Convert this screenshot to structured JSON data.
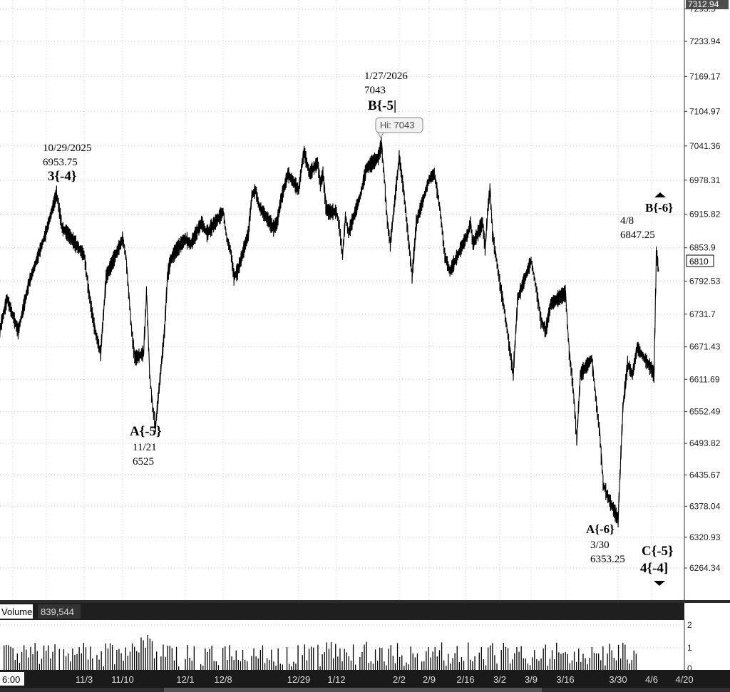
{
  "chart_data": {
    "type": "candlestick",
    "price_axis": {
      "ticks": [
        "7312.94",
        "7293.5",
        "7233.94",
        "7169.17",
        "7104.97",
        "7041.36",
        "6978.31",
        "6915.82",
        "6853.9",
        "6792.53",
        "6731.7",
        "6671.43",
        "6611.69",
        "6552.49",
        "6493.82",
        "6435.67",
        "6378.04",
        "6320.93",
        "6264.34"
      ],
      "max_label": "7312.94",
      "current_label": "6810",
      "range": [
        6210,
        7312
      ]
    },
    "time_axis": {
      "first_label": "6:00",
      "labels": [
        "11/3",
        "11/10",
        "12/1",
        "12/8",
        "12/29",
        "1/12",
        "2/2",
        "2/9",
        "2/16",
        "3/2",
        "3/9",
        "3/16",
        "3/30",
        "4/6",
        "4/20"
      ]
    },
    "price_series": [
      {
        "x": "2025-10-15",
        "y": 6700
      },
      {
        "x": "2025-10-17",
        "y": 6630
      },
      {
        "x": "2025-10-20",
        "y": 6760
      },
      {
        "x": "2025-10-22",
        "y": 6700
      },
      {
        "x": "2025-10-24",
        "y": 6790
      },
      {
        "x": "2025-10-27",
        "y": 6880
      },
      {
        "x": "2025-10-29",
        "y": 6953.75
      },
      {
        "x": "2025-10-30",
        "y": 6890
      },
      {
        "x": "2025-10-31",
        "y": 6880
      },
      {
        "x": "2025-11-03",
        "y": 6840
      },
      {
        "x": "2025-11-04",
        "y": 6760
      },
      {
        "x": "2025-11-05",
        "y": 6700
      },
      {
        "x": "2025-11-06",
        "y": 6660
      },
      {
        "x": "2025-11-07",
        "y": 6800
      },
      {
        "x": "2025-11-10",
        "y": 6870
      },
      {
        "x": "2025-11-11",
        "y": 6840
      },
      {
        "x": "2025-11-12",
        "y": 6770
      },
      {
        "x": "2025-11-13",
        "y": 6700
      },
      {
        "x": "2025-11-14",
        "y": 6650
      },
      {
        "x": "2025-11-17",
        "y": 6660
      },
      {
        "x": "2025-11-18",
        "y": 6770
      },
      {
        "x": "2025-11-19",
        "y": 6620
      },
      {
        "x": "2025-11-20",
        "y": 6560
      },
      {
        "x": "2025-11-21",
        "y": 6525
      },
      {
        "x": "2025-11-24",
        "y": 6700
      },
      {
        "x": "2025-11-25",
        "y": 6800
      },
      {
        "x": "2025-11-26",
        "y": 6830
      },
      {
        "x": "2025-11-28",
        "y": 6850
      },
      {
        "x": "2025-12-01",
        "y": 6870
      },
      {
        "x": "2025-12-02",
        "y": 6860
      },
      {
        "x": "2025-12-03",
        "y": 6880
      },
      {
        "x": "2025-12-04",
        "y": 6900
      },
      {
        "x": "2025-12-05",
        "y": 6880
      },
      {
        "x": "2025-12-08",
        "y": 6920
      },
      {
        "x": "2025-12-09",
        "y": 6870
      },
      {
        "x": "2025-12-10",
        "y": 6850
      },
      {
        "x": "2025-12-11",
        "y": 6800
      },
      {
        "x": "2025-12-12",
        "y": 6810
      },
      {
        "x": "2025-12-15",
        "y": 6880
      },
      {
        "x": "2025-12-16",
        "y": 6950
      },
      {
        "x": "2025-12-17",
        "y": 6960
      },
      {
        "x": "2025-12-18",
        "y": 6930
      },
      {
        "x": "2025-12-19",
        "y": 6920
      },
      {
        "x": "2025-12-22",
        "y": 6890
      },
      {
        "x": "2025-12-23",
        "y": 6900
      },
      {
        "x": "2025-12-24",
        "y": 6940
      },
      {
        "x": "2025-12-26",
        "y": 6990
      },
      {
        "x": "2025-12-29",
        "y": 6960
      },
      {
        "x": "2025-12-30",
        "y": 7000
      },
      {
        "x": "2025-12-31",
        "y": 7030
      },
      {
        "x": "2026-01-02",
        "y": 6990
      },
      {
        "x": "2026-01-05",
        "y": 7010
      },
      {
        "x": "2026-01-06",
        "y": 6970
      },
      {
        "x": "2026-01-07",
        "y": 6990
      },
      {
        "x": "2026-01-08",
        "y": 6930
      },
      {
        "x": "2026-01-09",
        "y": 6920
      },
      {
        "x": "2026-01-12",
        "y": 6920
      },
      {
        "x": "2026-01-13",
        "y": 6890
      },
      {
        "x": "2026-01-14",
        "y": 6840
      },
      {
        "x": "2026-01-15",
        "y": 6910
      },
      {
        "x": "2026-01-16",
        "y": 6880
      },
      {
        "x": "2026-01-20",
        "y": 6950
      },
      {
        "x": "2026-01-22",
        "y": 7000
      },
      {
        "x": "2026-01-26",
        "y": 7020
      },
      {
        "x": "2026-01-27",
        "y": 7043
      },
      {
        "x": "2026-01-28",
        "y": 6980
      },
      {
        "x": "2026-01-29",
        "y": 6900
      },
      {
        "x": "2026-01-30",
        "y": 6860
      },
      {
        "x": "2026-02-02",
        "y": 7020
      },
      {
        "x": "2026-02-03",
        "y": 6960
      },
      {
        "x": "2026-02-04",
        "y": 6880
      },
      {
        "x": "2026-02-05",
        "y": 6800
      },
      {
        "x": "2026-02-06",
        "y": 6900
      },
      {
        "x": "2026-02-09",
        "y": 6980
      },
      {
        "x": "2026-02-10",
        "y": 6990
      },
      {
        "x": "2026-02-11",
        "y": 6930
      },
      {
        "x": "2026-02-12",
        "y": 6840
      },
      {
        "x": "2026-02-13",
        "y": 6810
      },
      {
        "x": "2026-02-17",
        "y": 6880
      },
      {
        "x": "2026-02-18",
        "y": 6900
      },
      {
        "x": "2026-02-19",
        "y": 6860
      },
      {
        "x": "2026-02-20",
        "y": 6870
      },
      {
        "x": "2026-02-23",
        "y": 6900
      },
      {
        "x": "2026-02-24",
        "y": 6850
      },
      {
        "x": "2026-02-25",
        "y": 6920
      },
      {
        "x": "2026-02-26",
        "y": 6960
      },
      {
        "x": "2026-02-27",
        "y": 6880
      },
      {
        "x": "2026-03-02",
        "y": 6790
      },
      {
        "x": "2026-03-03",
        "y": 6740
      },
      {
        "x": "2026-03-04",
        "y": 6680
      },
      {
        "x": "2026-03-05",
        "y": 6620
      },
      {
        "x": "2026-03-06",
        "y": 6760
      },
      {
        "x": "2026-03-09",
        "y": 6830
      },
      {
        "x": "2026-03-10",
        "y": 6780
      },
      {
        "x": "2026-03-11",
        "y": 6720
      },
      {
        "x": "2026-03-12",
        "y": 6700
      },
      {
        "x": "2026-03-13",
        "y": 6750
      },
      {
        "x": "2026-03-16",
        "y": 6770
      },
      {
        "x": "2026-03-17",
        "y": 6660
      },
      {
        "x": "2026-03-18",
        "y": 6600
      },
      {
        "x": "2026-03-19",
        "y": 6500
      },
      {
        "x": "2026-03-20",
        "y": 6620
      },
      {
        "x": "2026-03-23",
        "y": 6650
      },
      {
        "x": "2026-03-24",
        "y": 6580
      },
      {
        "x": "2026-03-25",
        "y": 6520
      },
      {
        "x": "2026-03-26",
        "y": 6420
      },
      {
        "x": "2026-03-27",
        "y": 6400
      },
      {
        "x": "2026-03-30",
        "y": 6353.25
      },
      {
        "x": "2026-03-31",
        "y": 6560
      },
      {
        "x": "2026-04-01",
        "y": 6640
      },
      {
        "x": "2026-04-02",
        "y": 6620
      },
      {
        "x": "2026-04-03",
        "y": 6670
      },
      {
        "x": "2026-04-06",
        "y": 6630
      },
      {
        "x": "2026-04-07",
        "y": 6620
      },
      {
        "x": "2026-04-08",
        "y": 6847.25
      },
      {
        "x": "2026-04-09",
        "y": 6810
      }
    ],
    "annotations": [
      {
        "date": "10/29/2025",
        "price": "6953.75",
        "wave": "3{-4}"
      },
      {
        "wave": "A{-5}",
        "date": "11/21",
        "price": "6525"
      },
      {
        "date": "1/27/2026",
        "price": "7043",
        "wave": "B{-5|"
      },
      {
        "date": "4/8",
        "price": "6847.25",
        "wave": "B{-6}"
      },
      {
        "wave": "A{-6}",
        "date": "3/30",
        "price": "6353.25"
      },
      {
        "wave": "C{-5}",
        "wave2": "4{-4]"
      }
    ],
    "hi_bubble": "Hi: 7043",
    "volume": {
      "label": "Volume",
      "value": "839,544",
      "axis_labels": [
        "2",
        "1",
        "0"
      ],
      "bar_range": [
        0,
        2
      ]
    },
    "colors": {
      "price": "#000000",
      "grid": "#c8c8c8",
      "axis_bg": "#1a1a1a",
      "label_box": "#4d4d4d"
    }
  }
}
